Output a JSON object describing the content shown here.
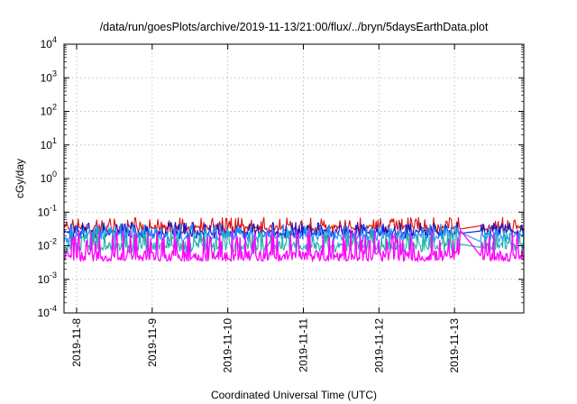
{
  "chart_data": {
    "type": "line",
    "title": "/data/run/goesPlots/archive/2019-11-13/21:00/flux/../bryn/5daysEarthData.plot",
    "xlabel": "Coordinated Universal Time (UTC)",
    "ylabel": "cGy/day",
    "yscale": "log",
    "ylim": [
      0.0001,
      10000
    ],
    "xlim": [
      "2019-11-07 20:00",
      "2019-11-13 22:00"
    ],
    "grid": true,
    "y_ticks": [
      {
        "base": "10",
        "exp": "4",
        "value": 10000
      },
      {
        "base": "10",
        "exp": "3",
        "value": 1000
      },
      {
        "base": "10",
        "exp": "2",
        "value": 100
      },
      {
        "base": "10",
        "exp": "1",
        "value": 10
      },
      {
        "base": "10",
        "exp": "0",
        "value": 1
      },
      {
        "base": "10",
        "exp": "-1",
        "value": 0.1
      },
      {
        "base": "10",
        "exp": "-2",
        "value": 0.01
      },
      {
        "base": "10",
        "exp": "-3",
        "value": 0.001
      },
      {
        "base": "10",
        "exp": "-4",
        "value": 0.0001
      }
    ],
    "x_ticks": [
      "2019-11-8",
      "2019-11-9",
      "2019-11-10",
      "2019-11-11",
      "2019-11-12",
      "2019-11-13"
    ],
    "data_gap": [
      "2019-11-13 02:00",
      "2019-11-13 08:00"
    ],
    "series": [
      {
        "color": "#dd1111",
        "level": 0.035,
        "min": 0.022,
        "max": 0.07
      },
      {
        "color": "#1111cc",
        "level": 0.025,
        "min": 0.016,
        "max": 0.05
      },
      {
        "color": "#1e90ff",
        "level": 0.02,
        "min": 0.012,
        "max": 0.045
      },
      {
        "color": "#20b2aa",
        "level": 0.01,
        "min": 0.006,
        "max": 0.03
      },
      {
        "color": "#ff00ff",
        "level": 0.005,
        "min": 0.0035,
        "max": 0.03
      }
    ]
  }
}
